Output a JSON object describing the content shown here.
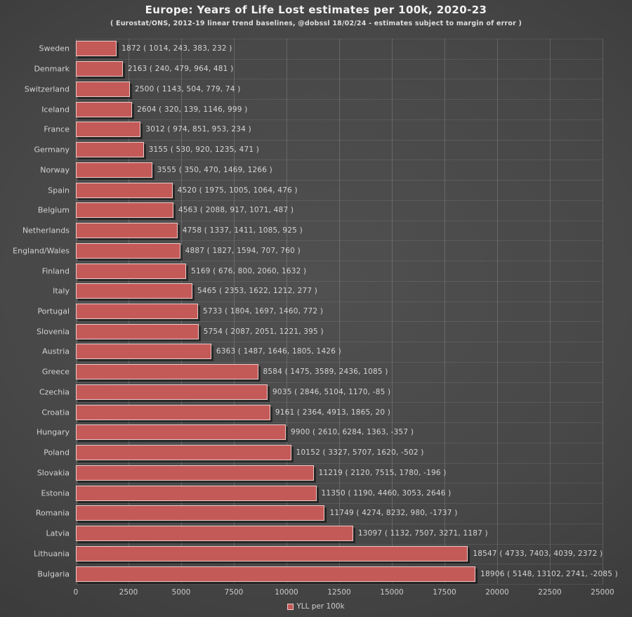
{
  "header": {
    "title": "Europe: Years of Life Lost estimates per 100k, 2020-23",
    "subtitle": "( Eurostat/ONS, 2012-19 linear trend baselines, @dobssl 18/02/24 - estimates subject to margin of error )"
  },
  "legend": {
    "label": "YLL per 100k"
  },
  "colors": {
    "bar_fill": "#c45a58",
    "bar_border": "#ecc9c7",
    "bar_shadow": "rgba(0,0,0,0.45)",
    "background_center": "#4c4c4c",
    "background_edge": "#222222",
    "label_text": "#d6d6d6"
  },
  "chart_data": {
    "type": "bar",
    "orientation": "horizontal",
    "title": "Europe: Years of Life Lost estimates per 100k, 2020-23",
    "subtitle": "( Eurostat/ONS, 2012-19 linear trend baselines, @dobssl 18/02/24 - estimates subject to margin of error )",
    "xlabel": "",
    "ylabel": "",
    "xlim": [
      0,
      25000
    ],
    "x_ticks": [
      0,
      2500,
      5000,
      7500,
      10000,
      12500,
      15000,
      17500,
      20000,
      22500,
      25000
    ],
    "grid": true,
    "legend_entries": [
      "YLL per 100k"
    ],
    "legend_position": "bottom-center",
    "categories": [
      "Sweden",
      "Denmark",
      "Switzerland",
      "Iceland",
      "France",
      "Germany",
      "Norway",
      "Spain",
      "Belgium",
      "Netherlands",
      "England/Wales",
      "Finland",
      "Italy",
      "Portugal",
      "Slovenia",
      "Austria",
      "Greece",
      "Czechia",
      "Croatia",
      "Hungary",
      "Poland",
      "Slovakia",
      "Estonia",
      "Romania",
      "Latvia",
      "Lithuania",
      "Bulgaria"
    ],
    "values": [
      1872,
      2163,
      2500,
      2604,
      3012,
      3155,
      3555,
      4520,
      4563,
      4758,
      4887,
      5169,
      5465,
      5733,
      5754,
      6363,
      8584,
      9035,
      9161,
      9900,
      10152,
      11219,
      11350,
      11749,
      13097,
      18547,
      18906
    ],
    "breakdown": [
      [
        1014,
        243,
        383,
        232
      ],
      [
        240,
        479,
        964,
        481
      ],
      [
        1143,
        504,
        779,
        74
      ],
      [
        320,
        139,
        1146,
        999
      ],
      [
        974,
        851,
        953,
        234
      ],
      [
        530,
        920,
        1235,
        471
      ],
      [
        350,
        470,
        1469,
        1266
      ],
      [
        1975,
        1005,
        1064,
        476
      ],
      [
        2088,
        917,
        1071,
        487
      ],
      [
        1337,
        1411,
        1085,
        925
      ],
      [
        1827,
        1594,
        707,
        760
      ],
      [
        676,
        800,
        2060,
        1632
      ],
      [
        2353,
        1622,
        1212,
        277
      ],
      [
        1804,
        1697,
        1460,
        772
      ],
      [
        2087,
        2051,
        1221,
        395
      ],
      [
        1487,
        1646,
        1805,
        1426
      ],
      [
        1475,
        3589,
        2436,
        1085
      ],
      [
        2846,
        5104,
        1170,
        -85
      ],
      [
        2364,
        4913,
        1865,
        20
      ],
      [
        2610,
        6284,
        1363,
        -357
      ],
      [
        3327,
        5707,
        1620,
        -502
      ],
      [
        2120,
        7515,
        1780,
        -196
      ],
      [
        1190,
        4460,
        3053,
        2646
      ],
      [
        4274,
        8232,
        980,
        -1737
      ],
      [
        1132,
        7507,
        3271,
        1187
      ],
      [
        4733,
        7403,
        4039,
        2372
      ],
      [
        5148,
        13102,
        2741,
        -2085
      ]
    ]
  }
}
